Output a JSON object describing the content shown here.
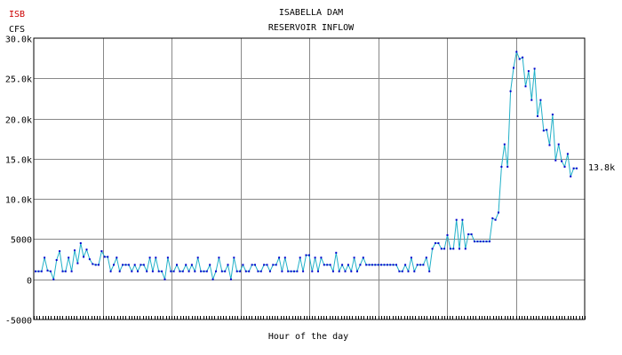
{
  "chart_data": {
    "type": "line",
    "station_code": "ISB",
    "unit_label": "CFS",
    "title": "ISABELLA DAM",
    "subtitle": "RESERVOIR INFLOW",
    "xlabel": "Hour of the day",
    "ylabel": "CFS",
    "ylim": [
      -5000,
      30000
    ],
    "yticks": [
      {
        "value": 30000,
        "label": "30.0k"
      },
      {
        "value": 25000,
        "label": "25.0k"
      },
      {
        "value": 20000,
        "label": "20.0k"
      },
      {
        "value": 15000,
        "label": "15.0k"
      },
      {
        "value": 10000,
        "label": "10.0k"
      },
      {
        "value": 5000,
        "label": "5000"
      },
      {
        "value": 0,
        "label": "0"
      },
      {
        "value": -5000,
        "label": "-5000"
      }
    ],
    "last_value_label": "13.8k",
    "grid": true,
    "colors": {
      "line": "#20b0c8",
      "marker": "#0000cc",
      "grid": "#888888",
      "station_code": "#cc0000"
    },
    "series": [
      {
        "values": [
          1000,
          1000,
          1000,
          2700,
          1100,
          1000,
          0,
          2400,
          3500,
          1000,
          1000,
          2700,
          1000,
          3600,
          2000,
          4500,
          2800,
          3700,
          2500,
          1900,
          1800,
          1800,
          3500,
          2800,
          2800,
          1000,
          1800,
          2700,
          1000,
          1800,
          1800,
          1800,
          1000,
          1800,
          1000,
          1800,
          1800,
          1000,
          2700,
          1000,
          2700,
          1000,
          1000,
          0,
          2700,
          1000,
          1000,
          1800,
          1000,
          1000,
          1800,
          1000,
          1800,
          1000,
          2700,
          1000,
          1000,
          1000,
          1800,
          0,
          1000,
          2700,
          1000,
          1000,
          1800,
          0,
          2700,
          1000,
          1000,
          1800,
          1000,
          1000,
          1800,
          1800,
          1000,
          1000,
          1800,
          1800,
          1000,
          1800,
          1800,
          2700,
          1000,
          2700,
          1000,
          1000,
          1000,
          1000,
          2700,
          1000,
          3000,
          3000,
          1000,
          2700,
          1000,
          2700,
          1800,
          1800,
          1800,
          1000,
          3300,
          1000,
          1800,
          1000,
          1800,
          1000,
          2700,
          1000,
          1800,
          2700,
          1800,
          1800,
          1800,
          1800,
          1800,
          1800,
          1800,
          1800,
          1800,
          1800,
          1800,
          1000,
          1000,
          1800,
          1000,
          2700,
          1000,
          1800,
          1800,
          1800,
          2700,
          1000,
          3800,
          4500,
          4500,
          3800,
          3800,
          5500,
          3800,
          3800,
          7400,
          3800,
          7400,
          3800,
          5600,
          5600,
          4700,
          4700,
          4700,
          4700,
          4700,
          4700,
          7600,
          7400,
          8300,
          14000,
          16800,
          14000,
          23400,
          26300,
          28300,
          27400,
          27600,
          24000,
          25900,
          22300,
          26200,
          20300,
          22300,
          18500,
          18600,
          16700,
          20500,
          14800,
          16800,
          14700,
          14000,
          15600,
          12800,
          13800,
          13800
        ]
      }
    ]
  }
}
